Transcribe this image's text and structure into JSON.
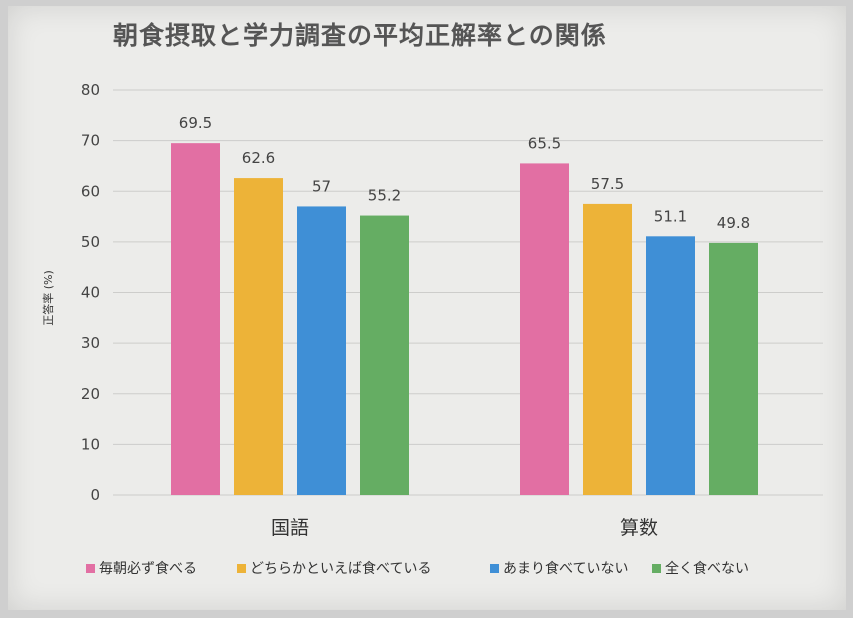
{
  "chart_data": {
    "type": "bar",
    "title": "朝食摂取と学力調査の平均正解率との関係",
    "ylabel": "正答率 (%)",
    "xlabel": "",
    "ylim": [
      0,
      80
    ],
    "yticks": [
      0,
      10,
      20,
      30,
      40,
      50,
      60,
      70,
      80
    ],
    "categories": [
      "国語",
      "算数"
    ],
    "series": [
      {
        "name": "毎朝必ず食べる",
        "color": "#e26fa3",
        "values": [
          69.5,
          65.5
        ],
        "labels": [
          "69.5",
          "65.5"
        ]
      },
      {
        "name": "どちらかといえば食べている",
        "color": "#edb338",
        "values": [
          62.6,
          57.5
        ],
        "labels": [
          "62.6",
          "57.5"
        ]
      },
      {
        "name": "あまり食べていない",
        "color": "#3f8fd6",
        "values": [
          57,
          51.1
        ],
        "labels": [
          "57",
          "51.1"
        ]
      },
      {
        "name": "全く食べない",
        "color": "#65ad63",
        "values": [
          55.2,
          49.8
        ],
        "labels": [
          "55.2",
          "49.8"
        ]
      }
    ],
    "grid": true,
    "legend": "bottom"
  }
}
